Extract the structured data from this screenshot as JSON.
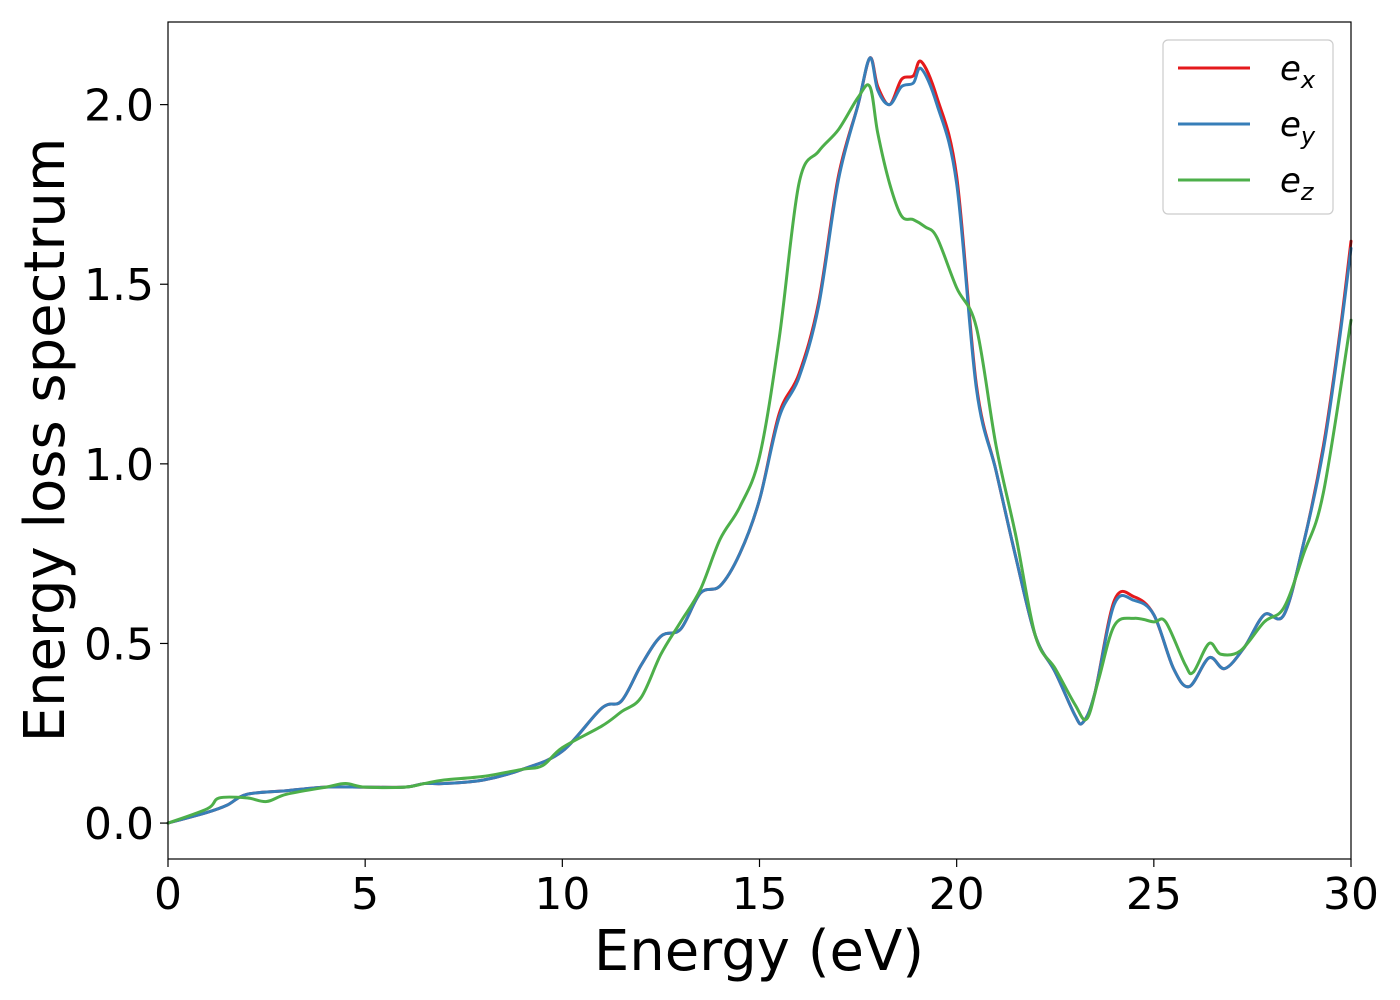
{
  "chart_data": {
    "type": "line",
    "xlabel": "Energy (eV)",
    "ylabel": "Energy loss spectrum",
    "xlim": [
      0,
      30
    ],
    "ylim": [
      -0.1,
      2.23
    ],
    "xticks": [
      0,
      5,
      10,
      15,
      20,
      25,
      30
    ],
    "xtick_labels": [
      "0",
      "5",
      "10",
      "15",
      "20",
      "25",
      "30"
    ],
    "yticks": [
      0.0,
      0.5,
      1.0,
      1.5,
      2.0
    ],
    "ytick_labels": [
      "0.0",
      "0.5",
      "1.0",
      "1.5",
      "2.0"
    ],
    "grid": false,
    "legend_position": "top-right",
    "series": [
      {
        "name": "e",
        "subscript": "x",
        "color": "#e41a1c",
        "x": [
          0,
          1,
          1.5,
          2,
          3,
          4,
          5,
          6,
          6.5,
          7,
          8,
          9,
          10,
          11,
          11.5,
          12,
          12.5,
          13,
          13.5,
          14,
          14.5,
          15,
          15.5,
          16,
          16.5,
          17,
          17.5,
          17.8,
          18,
          18.3,
          18.6,
          18.9,
          19.1,
          19.5,
          20,
          20.5,
          21,
          21.5,
          22,
          22.5,
          23,
          23.2,
          23.5,
          24,
          24.5,
          25,
          25.5,
          25.9,
          26.4,
          26.8,
          27.3,
          27.8,
          28.3,
          28.8,
          29.3,
          29.7,
          30
        ],
        "y": [
          0,
          0.03,
          0.05,
          0.08,
          0.09,
          0.1,
          0.1,
          0.1,
          0.11,
          0.11,
          0.12,
          0.15,
          0.2,
          0.32,
          0.34,
          0.44,
          0.52,
          0.54,
          0.64,
          0.66,
          0.75,
          0.9,
          1.14,
          1.25,
          1.45,
          1.8,
          2.0,
          2.13,
          2.05,
          2.0,
          2.07,
          2.08,
          2.12,
          2.02,
          1.8,
          1.22,
          0.98,
          0.74,
          0.52,
          0.42,
          0.3,
          0.28,
          0.36,
          0.62,
          0.63,
          0.58,
          0.43,
          0.38,
          0.46,
          0.43,
          0.49,
          0.58,
          0.58,
          0.78,
          1.05,
          1.35,
          1.62
        ]
      },
      {
        "name": "e",
        "subscript": "y",
        "color": "#377eb8",
        "x": [
          0,
          1,
          1.5,
          2,
          3,
          4,
          5,
          6,
          6.5,
          7,
          8,
          9,
          10,
          11,
          11.5,
          12,
          12.5,
          13,
          13.5,
          14,
          14.5,
          15,
          15.5,
          16,
          16.5,
          17,
          17.5,
          17.8,
          18,
          18.3,
          18.6,
          18.9,
          19.1,
          19.5,
          20,
          20.5,
          21,
          21.5,
          22,
          22.5,
          23,
          23.2,
          23.5,
          24,
          24.5,
          25,
          25.5,
          25.9,
          26.4,
          26.8,
          27.3,
          27.8,
          28.3,
          28.8,
          29.3,
          29.7,
          30
        ],
        "y": [
          0,
          0.03,
          0.05,
          0.08,
          0.09,
          0.1,
          0.1,
          0.1,
          0.11,
          0.11,
          0.12,
          0.15,
          0.2,
          0.32,
          0.34,
          0.44,
          0.52,
          0.54,
          0.64,
          0.66,
          0.75,
          0.9,
          1.13,
          1.24,
          1.44,
          1.79,
          2.0,
          2.13,
          2.04,
          2.0,
          2.05,
          2.06,
          2.1,
          2.0,
          1.78,
          1.21,
          0.98,
          0.74,
          0.52,
          0.42,
          0.3,
          0.28,
          0.36,
          0.61,
          0.62,
          0.58,
          0.43,
          0.38,
          0.46,
          0.43,
          0.49,
          0.58,
          0.58,
          0.78,
          1.04,
          1.34,
          1.6
        ]
      },
      {
        "name": "e",
        "subscript": "z",
        "color": "#4daf4a",
        "x": [
          0,
          1,
          1.3,
          2,
          2.5,
          3,
          4,
          4.5,
          5,
          6,
          6.5,
          7,
          8,
          9,
          9.5,
          10,
          11,
          11.5,
          12,
          12.5,
          13,
          13.5,
          14,
          14.5,
          15,
          15.5,
          16,
          16.5,
          17,
          17.5,
          17.8,
          18,
          18.3,
          18.6,
          18.9,
          19.2,
          19.5,
          20,
          20.5,
          21,
          21.5,
          22,
          22.5,
          23,
          23.3,
          23.6,
          24,
          24.5,
          25,
          25.3,
          25.8,
          26,
          26.4,
          26.7,
          27.2,
          27.8,
          28.3,
          28.8,
          29.3,
          30
        ],
        "y": [
          0,
          0.04,
          0.07,
          0.07,
          0.06,
          0.08,
          0.1,
          0.11,
          0.1,
          0.1,
          0.11,
          0.12,
          0.13,
          0.15,
          0.16,
          0.21,
          0.27,
          0.31,
          0.35,
          0.47,
          0.56,
          0.65,
          0.79,
          0.88,
          1.02,
          1.35,
          1.78,
          1.87,
          1.93,
          2.02,
          2.05,
          1.92,
          1.78,
          1.69,
          1.68,
          1.66,
          1.63,
          1.49,
          1.38,
          1.05,
          0.8,
          0.52,
          0.43,
          0.33,
          0.29,
          0.4,
          0.55,
          0.57,
          0.56,
          0.56,
          0.44,
          0.42,
          0.5,
          0.47,
          0.48,
          0.56,
          0.6,
          0.75,
          0.92,
          1.4
        ]
      }
    ]
  }
}
